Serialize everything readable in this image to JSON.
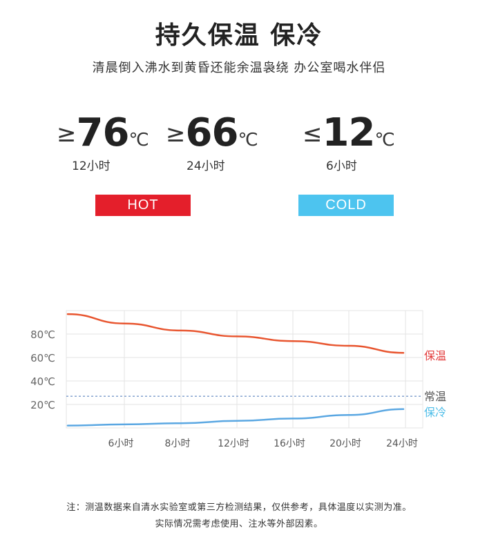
{
  "header": {
    "title": "持久保温 保冷",
    "subtitle": "清晨倒入沸水到黄昏还能余温袅绕 办公室喝水伴侣"
  },
  "stats": [
    {
      "symbol": "≥",
      "value": "76",
      "unit": "℃",
      "hours": "12小时"
    },
    {
      "symbol": "≥",
      "value": "66",
      "unit": "℃",
      "hours": "24小时"
    },
    {
      "symbol": "≤",
      "value": "12",
      "unit": "℃",
      "hours": "6小时"
    }
  ],
  "badges": {
    "hot_label": "HOT",
    "cold_label": "COLD",
    "hot_color": "#e41f2b",
    "cold_color": "#4dc4ef"
  },
  "chart_data": {
    "type": "line",
    "y_ticks": [
      "80℃",
      "60℃",
      "40℃",
      "20℃"
    ],
    "y_tick_values": [
      80,
      60,
      40,
      20
    ],
    "x_ticks": [
      "6小时",
      "8小时",
      "12小时",
      "16小时",
      "20小时",
      "24小时"
    ],
    "ylim": [
      0,
      100
    ],
    "grid": true,
    "series": [
      {
        "name": "保温",
        "color": "#e8552f",
        "label_color": "#e23a3a",
        "values": [
          97,
          89,
          83,
          78,
          74,
          70,
          64
        ]
      },
      {
        "name": "保冷",
        "color": "#5aa7e2",
        "label_color": "#4dbde8",
        "values": [
          2,
          3,
          4,
          6,
          8,
          11,
          16
        ]
      }
    ],
    "reference": {
      "name": "常温",
      "value": 27,
      "color": "#6b8fc4",
      "label_color": "#555555"
    }
  },
  "notes": [
    "注：测温数据来自清水实验室或第三方检测结果，仅供参考，具体温度以实测为准。",
    "实际情况需考虑使用、注水等外部因素。"
  ]
}
